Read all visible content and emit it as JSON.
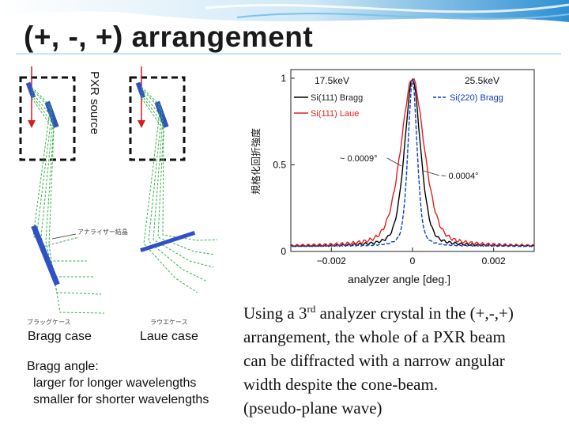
{
  "slide": {
    "title": "(+, -, +) arrangement"
  },
  "diagram": {
    "source_label": "PXR source",
    "analyzer_note": "アナライザー結晶",
    "bragg_jp": "ブラッグケース",
    "laue_jp": "ラウエケース",
    "bragg_case": "Bragg case",
    "laue_case": "Laue case",
    "angle_heading": "Bragg angle:",
    "angle_line1": "larger for longer wavelengths",
    "angle_line2": "smaller for shorter wavelengths"
  },
  "chart_data": {
    "type": "line",
    "ylabel": "規格化回折強度",
    "xlabel": "analyzer angle [deg.]",
    "xlim": [
      -0.003,
      0.003
    ],
    "ylim": [
      0,
      1.05
    ],
    "xticks": [
      "-0.002",
      "0",
      "0.002"
    ],
    "yticks": [
      "0",
      "0.5",
      "1"
    ],
    "left_energy": "17.5keV",
    "right_energy": "25.5keV",
    "annotation_wide": "~ 0.0009°",
    "annotation_narrow": "~ 0.0004°",
    "series": [
      {
        "name": "Si(111) Bragg",
        "color": "#000000",
        "width": 0.00042,
        "tail": 0.12
      },
      {
        "name": "Si(111) Laue",
        "color": "#e02020",
        "width": 0.00062,
        "tail": 0.18
      },
      {
        "name": "Si(220) Bragg",
        "color": "#1040c0",
        "width": 0.00024,
        "tail": 0.05
      }
    ]
  },
  "body": {
    "line1_a": "Using a 3",
    "line1_sup": "rd",
    "line1_b": " analyzer crystal in the (+,-,+)",
    "line2": "arrangement, the whole of a  PXR beam",
    "line3": "can be diffracted with a narrow angular",
    "line4": "width despite the cone-beam.",
    "line5": "(pseudo-plane wave)"
  },
  "colors": {
    "header_blue": "#3a9ad9",
    "beam_green": "#3cb04a",
    "crystal_blue": "#3050c8",
    "source_red": "#d02020"
  }
}
